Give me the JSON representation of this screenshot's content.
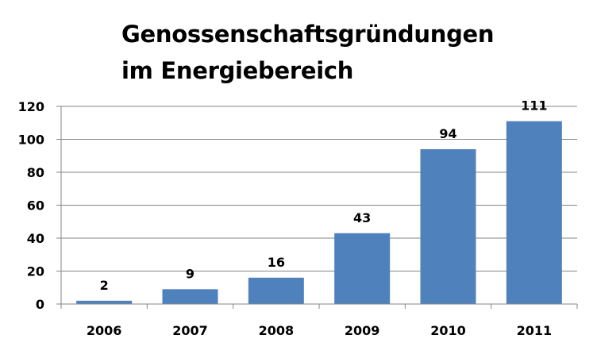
{
  "chart_data": {
    "type": "bar",
    "title_lines": [
      "Genossenschaftsgründungen",
      "im Energiebereich"
    ],
    "categories": [
      "2006",
      "2007",
      "2008",
      "2009",
      "2010",
      "2011"
    ],
    "values": [
      2,
      9,
      16,
      43,
      94,
      111
    ],
    "data_labels": [
      "2",
      "9",
      "16",
      "43",
      "94",
      "111"
    ],
    "xlabel": "",
    "ylabel": "",
    "ylim": [
      0,
      120
    ],
    "yticks": [
      "0",
      "20",
      "40",
      "60",
      "80",
      "100",
      "120"
    ],
    "grid": true,
    "legend": "none",
    "colors": {
      "bar": "#4f81bd",
      "grid": "#868686",
      "axis": "#868686"
    }
  }
}
